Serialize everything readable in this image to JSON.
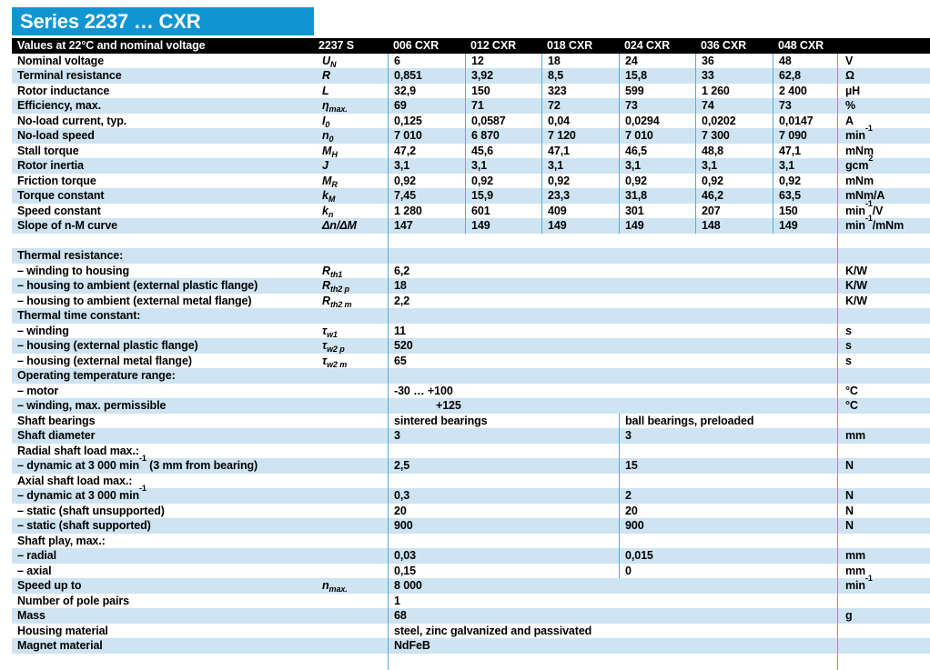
{
  "title": "Series 2237 … CXR",
  "colors": {
    "title_bar_blue": "#1095d3",
    "row_shade_blue": "#cee4f2",
    "grid_line_blue": "#55acdc",
    "header_black": "#000000"
  },
  "header": {
    "label": "Values at 22°C and nominal voltage",
    "series": "2237 S",
    "columns": [
      "006 CXR",
      "012 CXR",
      "018 CXR",
      "024 CXR",
      "036 CXR",
      "048 CXR"
    ]
  },
  "rows": [
    {
      "label": "Nominal voltage",
      "symbol": "U_N",
      "type": "six",
      "values": [
        "6",
        "12",
        "18",
        "24",
        "36",
        "48"
      ],
      "unit": "V",
      "shade": false
    },
    {
      "label": "Terminal resistance",
      "symbol": "R",
      "type": "six",
      "values": [
        "0,851",
        "3,92",
        "8,5",
        "15,8",
        "33",
        "62,8"
      ],
      "unit": "Ω",
      "shade": true
    },
    {
      "label": "Rotor inductance",
      "symbol": "L",
      "type": "six",
      "values": [
        "32,9",
        "150",
        "323",
        "599",
        "1 260",
        "2 400"
      ],
      "unit": "µH",
      "shade": false
    },
    {
      "label": "Efficiency, max.",
      "symbol": "η_max.",
      "type": "six",
      "values": [
        "69",
        "71",
        "72",
        "73",
        "74",
        "73"
      ],
      "unit": "%",
      "shade": true
    },
    {
      "label": "No-load current, typ.",
      "symbol": "I_0",
      "type": "six",
      "values": [
        "0,125",
        "0,0587",
        "0,04",
        "0,0294",
        "0,0202",
        "0,0147"
      ],
      "unit": "A",
      "shade": false
    },
    {
      "label": "No-load speed",
      "symbol": "n_0",
      "type": "six",
      "values": [
        "7 010",
        "6 870",
        "7 120",
        "7 010",
        "7 300",
        "7 090"
      ],
      "unit": "min^-1",
      "shade": true
    },
    {
      "label": "Stall torque",
      "symbol": "M_H",
      "type": "six",
      "values": [
        "47,2",
        "45,6",
        "47,1",
        "46,5",
        "48,8",
        "47,1"
      ],
      "unit": "mNm",
      "shade": false
    },
    {
      "label": "Rotor inertia",
      "symbol": "J",
      "type": "six",
      "values": [
        "3,1",
        "3,1",
        "3,1",
        "3,1",
        "3,1",
        "3,1"
      ],
      "unit": "gcm^2",
      "shade": true
    },
    {
      "label": "Friction torque",
      "symbol": "M_R",
      "type": "six",
      "values": [
        "0,92",
        "0,92",
        "0,92",
        "0,92",
        "0,92",
        "0,92"
      ],
      "unit": "mNm",
      "shade": false
    },
    {
      "label": "Torque constant",
      "symbol": "k_M",
      "type": "six",
      "values": [
        "7,45",
        "15,9",
        "23,3",
        "31,8",
        "46,2",
        "63,5"
      ],
      "unit": "mNm/A",
      "shade": true
    },
    {
      "label": "Speed constant",
      "symbol": "k_n",
      "type": "six",
      "values": [
        "1 280",
        "601",
        "409",
        "301",
        "207",
        "150"
      ],
      "unit": "min^-1/V",
      "shade": false
    },
    {
      "label": "Slope of n-M curve",
      "symbol": "Δn/ΔM",
      "type": "six",
      "values": [
        "147",
        "149",
        "149",
        "149",
        "148",
        "149"
      ],
      "unit": "min^-1/mNm",
      "shade": true
    },
    {
      "label": "",
      "type": "full",
      "value": "",
      "unit": "",
      "shade": false
    },
    {
      "label": "Thermal resistance:",
      "type": "full",
      "value": "",
      "unit": "",
      "shade": true
    },
    {
      "label": "– winding to housing",
      "symbol": "R_th1",
      "type": "full",
      "value": "6,2",
      "unit": "K/W",
      "shade": false
    },
    {
      "label": "– housing to ambient (external plastic flange)",
      "symbol": "R_th2 p",
      "type": "full",
      "value": "18",
      "unit": "K/W",
      "shade": true
    },
    {
      "label": "– housing to ambient (external metal flange)",
      "symbol": "R_th2 m",
      "type": "full",
      "value": "2,2",
      "unit": "K/W",
      "shade": false
    },
    {
      "label": "Thermal time constant:",
      "type": "full",
      "value": "",
      "unit": "",
      "shade": true
    },
    {
      "label": "– winding",
      "symbol": "τ_w1",
      "type": "full",
      "value": "11",
      "unit": "s",
      "shade": false
    },
    {
      "label": "– housing (external plastic flange)",
      "symbol": "τ_w2 p",
      "type": "full",
      "value": "520",
      "unit": "s",
      "shade": true
    },
    {
      "label": "– housing (external metal flange)",
      "symbol": "τ_w2 m",
      "type": "full",
      "value": "65",
      "unit": "s",
      "shade": false
    },
    {
      "label": "Operating temperature range:",
      "type": "full",
      "value": "",
      "unit": "",
      "shade": true
    },
    {
      "label": "– motor",
      "type": "full",
      "value": "-30  … +100",
      "unit": "°C",
      "shade": false
    },
    {
      "label": "– winding, max. permissible",
      "type": "full",
      "value": "+125",
      "unit": "°C",
      "shade": true,
      "indent": true
    },
    {
      "label": "Shaft bearings",
      "type": "two",
      "values": [
        "sintered bearings",
        "ball bearings, preloaded"
      ],
      "unit": "",
      "shade": false
    },
    {
      "label": "Shaft diameter",
      "type": "two",
      "values": [
        "3",
        "3"
      ],
      "unit": "mm",
      "shade": true
    },
    {
      "label": "Radial shaft load max.:",
      "type": "two",
      "values": [
        "",
        ""
      ],
      "unit": "",
      "shade": false
    },
    {
      "label": "– dynamic at 3 000 min^-1 (3 mm from bearing)",
      "type": "two",
      "values": [
        "2,5",
        "15"
      ],
      "unit": "N",
      "shade": true
    },
    {
      "label": "Axial shaft load max.:",
      "type": "two",
      "values": [
        "",
        ""
      ],
      "unit": "",
      "shade": false
    },
    {
      "label": "– dynamic at 3 000 min^-1",
      "type": "two",
      "values": [
        "0,3",
        "2"
      ],
      "unit": "N",
      "shade": true
    },
    {
      "label": "– static (shaft unsupported)",
      "type": "two",
      "values": [
        "20",
        "20"
      ],
      "unit": "N",
      "shade": false
    },
    {
      "label": "– static (shaft supported)",
      "type": "two",
      "values": [
        "900",
        "900"
      ],
      "unit": "N",
      "shade": true
    },
    {
      "label": "Shaft play, max.:",
      "type": "two",
      "values": [
        "",
        ""
      ],
      "unit": "",
      "shade": false
    },
    {
      "label": "– radial",
      "type": "two",
      "values": [
        "0,03",
        "0,015"
      ],
      "unit": "mm",
      "shade": true
    },
    {
      "label": "– axial",
      "type": "two",
      "values": [
        "0,15",
        "0"
      ],
      "unit": "mm",
      "shade": false
    },
    {
      "label": "Speed up to",
      "symbol": "n_max.",
      "type": "full",
      "value": "8 000",
      "unit": "min^-1",
      "shade": true
    },
    {
      "label": "Number of pole pairs",
      "type": "full",
      "value": "1",
      "unit": "",
      "shade": false
    },
    {
      "label": "Mass",
      "type": "full",
      "value": "68",
      "unit": "g",
      "shade": true
    },
    {
      "label": "Housing material",
      "type": "full",
      "value": "steel, zinc galvanized and passivated",
      "unit": "",
      "shade": false
    },
    {
      "label": "Magnet material",
      "type": "full",
      "value": "NdFeB",
      "unit": "",
      "shade": true
    }
  ]
}
